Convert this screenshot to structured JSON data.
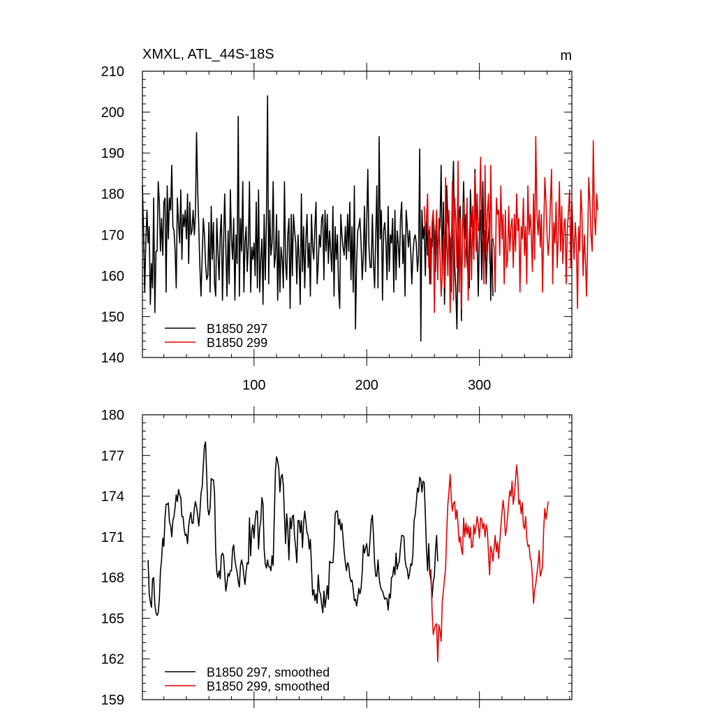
{
  "chart_data": [
    {
      "type": "line",
      "title_left": "XMXL, ATL_44S-18S",
      "title_right": "m",
      "xlim": [
        1,
        382
      ],
      "ylim": [
        140,
        210
      ],
      "yticks": [
        140,
        150,
        160,
        170,
        180,
        190,
        200,
        210
      ],
      "xticks": [
        100,
        200,
        300
      ],
      "xtick_labels": [
        "100",
        "200",
        "300"
      ],
      "legend": "bottom-left",
      "series": [
        {
          "name": "B1850 297",
          "color": "#000000",
          "x_start": 1,
          "values": [
            182,
            171,
            156,
            168,
            176,
            168,
            172,
            153,
            163,
            157,
            179,
            151,
            166,
            166,
            183,
            178,
            166,
            174,
            165,
            178,
            179,
            156,
            182,
            169,
            179,
            176,
            187,
            172,
            171,
            166,
            157,
            179,
            173,
            168,
            181,
            164,
            175,
            172,
            176,
            169,
            180,
            163,
            178,
            170,
            171,
            176,
            170,
            175,
            195,
            181,
            172,
            162,
            155,
            165,
            174,
            170,
            163,
            159,
            160,
            173,
            156,
            177,
            164,
            173,
            158,
            155,
            174,
            166,
            159,
            170,
            175,
            154,
            168,
            180,
            167,
            155,
            171,
            158,
            181,
            169,
            164,
            174,
            154,
            170,
            163,
            199,
            155,
            174,
            166,
            183,
            156,
            168,
            172,
            161,
            168,
            183,
            156,
            167,
            164,
            168,
            160,
            178,
            157,
            181,
            156,
            164,
            169,
            153,
            175,
            159,
            174,
            204,
            158,
            176,
            165,
            168,
            183,
            162,
            165,
            175,
            154,
            171,
            156,
            167,
            164,
            157,
            183,
            163,
            159,
            170,
            174,
            152,
            175,
            160,
            175,
            171,
            168,
            158,
            170,
            164,
            153,
            180,
            161,
            172,
            157,
            169,
            175,
            162,
            168,
            155,
            175,
            167,
            164,
            172,
            178,
            158,
            163,
            170,
            167,
            174,
            175,
            159,
            176,
            166,
            175,
            163,
            171,
            166,
            161,
            177,
            155,
            172,
            164,
            170,
            157,
            152,
            175,
            170,
            167,
            165,
            172,
            164,
            175,
            166,
            178,
            159,
            172,
            156,
            182,
            147,
            163,
            171,
            172,
            174,
            168,
            159,
            165,
            177,
            161,
            173,
            186,
            167,
            162,
            162,
            175,
            163,
            157,
            169,
            182,
            157,
            194,
            169,
            176,
            154,
            171,
            173,
            168,
            159,
            177,
            161,
            170,
            168,
            174,
            156,
            176,
            159,
            171,
            168,
            162,
            174,
            178,
            163,
            170,
            155,
            176,
            172,
            167,
            171,
            166,
            158,
            165,
            169,
            170,
            168,
            161,
            165,
            191,
            144,
            176,
            169,
            172,
            160,
            175,
            165,
            171,
            158,
            169,
            167,
            175,
            170,
            161,
            173,
            165,
            170,
            172,
            187,
            160,
            178,
            153,
            166,
            182,
            173,
            171,
            169,
            156,
            179,
            188,
            163,
            157,
            147,
            166,
            175,
            177,
            149,
            171,
            183,
            169,
            175,
            163,
            160,
            157,
            181,
            172,
            176,
            164,
            186,
            175,
            168,
            155,
            171,
            176,
            159,
            183,
            162,
            171,
            158,
            167,
            170,
            175,
            154,
            169,
            155
          ]
        },
        {
          "name": "B1850 299",
          "color": "#e00000",
          "x_start": 251,
          "values": [
            177,
            170,
            174,
            180,
            162,
            172,
            158,
            173,
            176,
            151,
            170,
            176,
            159,
            174,
            166,
            155,
            160,
            170,
            157,
            184,
            169,
            160,
            176,
            151,
            165,
            183,
            154,
            179,
            174,
            162,
            188,
            156,
            174,
            152,
            169,
            178,
            162,
            167,
            179,
            154,
            170,
            175,
            159,
            177,
            164,
            185,
            166,
            180,
            171,
            173,
            189,
            170,
            168,
            158,
            187,
            166,
            175,
            180,
            163,
            187,
            169,
            169,
            167,
            156,
            179,
            175,
            176,
            165,
            182,
            169,
            175,
            158,
            176,
            162,
            164,
            177,
            166,
            172,
            174,
            162,
            175,
            166,
            180,
            171,
            174,
            156,
            172,
            169,
            179,
            165,
            172,
            158,
            182,
            170,
            175,
            170,
            161,
            180,
            164,
            194,
            175,
            170,
            176,
            167,
            175,
            156,
            170,
            184,
            178,
            170,
            165,
            169,
            178,
            186,
            158,
            173,
            168,
            178,
            162,
            170,
            183,
            166,
            177,
            163,
            172,
            174,
            158,
            171,
            176,
            181,
            162,
            178,
            170,
            164,
            173,
            168,
            152,
            172,
            166,
            181,
            175,
            160,
            170,
            164,
            155,
            168,
            184,
            178,
            170,
            166,
            193,
            175,
            170,
            180,
            176
          ]
        }
      ]
    },
    {
      "type": "line",
      "xlim": [
        1,
        382
      ],
      "ylim": [
        159,
        180
      ],
      "yticks": [
        159,
        162,
        165,
        168,
        171,
        174,
        177,
        180
      ],
      "xticks": [
        100,
        200,
        300
      ],
      "xtick_labels": [],
      "legend": "bottom-left",
      "series": [
        {
          "name": "B1850 297, smoothed",
          "color": "#000000",
          "x_start": 6,
          "values": [
            169.3,
            166.8,
            166.2,
            165.8,
            167.9,
            168.0,
            166.0,
            165.4,
            165.2,
            165.4,
            166.4,
            168.5,
            169.3,
            170.9,
            170.3,
            172.4,
            173.4,
            173.4,
            173.5,
            172.1,
            171.8,
            171.0,
            172.2,
            172.5,
            173.2,
            174.1,
            173.6,
            174.5,
            174.1,
            173.9,
            172.5,
            172.5,
            171.6,
            171.1,
            171.2,
            170.5,
            171.8,
            172.4,
            172.8,
            172.0,
            172.0,
            173.1,
            173.6,
            173.2,
            172.6,
            171.8,
            172.8,
            174.2,
            174.7,
            176.3,
            177.7,
            178.0,
            175.6,
            173.1,
            172.6,
            173.1,
            175.3,
            175.2,
            175.2,
            174.2,
            170.0,
            168.4,
            168.0,
            168.5,
            167.9,
            169.6,
            169.8,
            169.6,
            168.3,
            167.0,
            167.6,
            168.3,
            168.1,
            168.5,
            168.5,
            170.1,
            170.4,
            169.3,
            168.8,
            168.4,
            167.7,
            167.3,
            168.9,
            169.3,
            168.9,
            168.1,
            167.5,
            168.5,
            169.1,
            169.0,
            172.4,
            169.6,
            171.5,
            171.9,
            170.9,
            172.2,
            172.9,
            172.9,
            170.1,
            171.6,
            172.2,
            173.9,
            173.4,
            170.1,
            169.0,
            168.7,
            169.3,
            168.8,
            168.8,
            168.5,
            169.6,
            168.9,
            172.6,
            175.9,
            176.9,
            176.6,
            176.0,
            174.3,
            175.4,
            175.6,
            174.8,
            172.5,
            170.5,
            172.7,
            171.6,
            169.3,
            172.4,
            171.6,
            172.5,
            172.6,
            171.0,
            170.2,
            169.1,
            172.2,
            172.2,
            171.3,
            172.2,
            170.2,
            172.0,
            172.9,
            172.1,
            171.3,
            171.1,
            170.1,
            170.8,
            168.8,
            166.7,
            167.1,
            166.3,
            166.8,
            166.1,
            168.2,
            167.0,
            166.8,
            166.0,
            165.4,
            167.0,
            165.8,
            166.5,
            167.4,
            166.4,
            169.2,
            169.1,
            169.1,
            169.1,
            170.3,
            172.7,
            172.9,
            172.9,
            171.9,
            172.3,
            171.5,
            172.0,
            170.9,
            169.9,
            169.1,
            168.5,
            169.1,
            168.9,
            168.1,
            167.7,
            167.8,
            167.1,
            166.3,
            166.4,
            165.9,
            166.5,
            167.2,
            166.8,
            167.2,
            168.4,
            170.4,
            169.8,
            170.2,
            170.5,
            169.6,
            169.6,
            170.9,
            172.2,
            172.6,
            171.1,
            169.1,
            168.1,
            168.1,
            169.3,
            168.0,
            167.4,
            167.1,
            167.0,
            166.7,
            166.4,
            166.5,
            166.4,
            165.6,
            166.8,
            166.5,
            168.0,
            168.1,
            168.8,
            168.2,
            169.8,
            168.6,
            169.0,
            169.2,
            170.3,
            171.1,
            171.1,
            171.0,
            169.3,
            168.8,
            168.6,
            167.9,
            168.3,
            169.0,
            168.9,
            169.8,
            172.2,
            172.6,
            173.5,
            174.6,
            174.3,
            175.4,
            175.2,
            174.3,
            175.1,
            175.0,
            172.6,
            170.1,
            168.5,
            170.5,
            168.3,
            167.8,
            166.5,
            167.7,
            168.1,
            170.0,
            171.1,
            169.2
          ]
        },
        {
          "name": "B1850 299, smoothed",
          "color": "#e00000",
          "x_start": 257,
          "values": [
            168.6,
            165.6,
            163.8,
            164.2,
            164.5,
            164.6,
            161.8,
            164.5,
            164.1,
            163.3,
            166.2,
            167.0,
            167.9,
            168.7,
            171.4,
            173.4,
            174.4,
            175.6,
            173.8,
            172.9,
            173.5,
            173.6,
            172.3,
            173.0,
            171.9,
            170.6,
            171.0,
            170.1,
            169.7,
            172.4,
            171.0,
            172.0,
            171.2,
            171.8,
            170.9,
            171.7,
            170.2,
            170.3,
            171.9,
            171.2,
            171.8,
            172.5,
            171.9,
            170.9,
            172.4,
            172.3,
            171.6,
            172.0,
            171.0,
            171.9,
            171.5,
            169.8,
            168.2,
            170.3,
            169.9,
            169.2,
            170.2,
            171.1,
            169.9,
            170.6,
            169.4,
            170.6,
            171.7,
            172.8,
            173.7,
            172.9,
            171.1,
            171.6,
            172.5,
            173.6,
            174.4,
            174.0,
            175.1,
            173.4,
            174.1,
            175.2,
            176.3,
            175.4,
            173.4,
            173.7,
            172.7,
            173.5,
            171.8,
            171.6,
            172.5,
            170.9,
            170.3,
            170.4,
            169.4,
            169.2,
            168.0,
            166.1,
            167.1,
            167.5,
            168.3,
            169.0,
            170.0,
            168.1,
            168.4,
            168.8,
            171.5,
            173.1,
            172.3,
            172.9,
            173.6
          ]
        }
      ]
    }
  ]
}
